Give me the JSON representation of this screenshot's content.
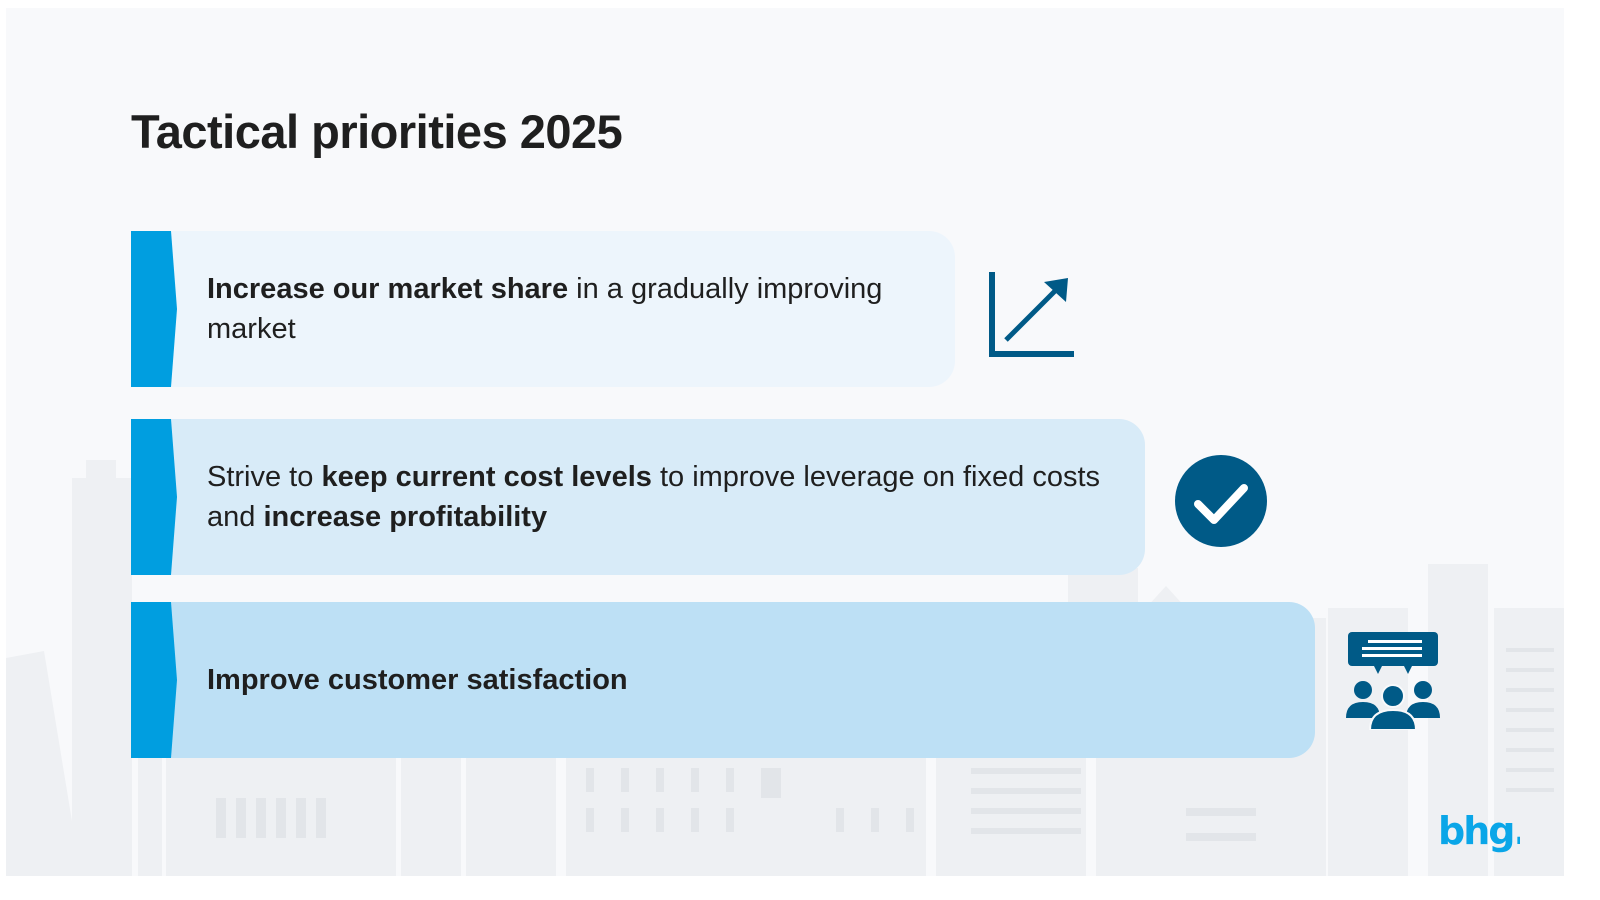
{
  "slide": {
    "title": "Tactical priorities 2025",
    "priorities": [
      {
        "parts": [
          {
            "text": "Increase our market share",
            "bold": true
          },
          {
            "text": " in a gradually improving market",
            "bold": false
          }
        ],
        "icon": "chart-up-arrow-icon"
      },
      {
        "parts": [
          {
            "text": "Strive to ",
            "bold": false
          },
          {
            "text": "keep current cost levels",
            "bold": true
          },
          {
            "text": " to improve leverage on fixed costs and ",
            "bold": false
          },
          {
            "text": "increase profitability",
            "bold": true
          }
        ],
        "icon": "checkmark-circle-icon"
      },
      {
        "parts": [
          {
            "text": "Improve customer satisfaction",
            "bold": true
          }
        ],
        "icon": "customers-feedback-icon"
      }
    ],
    "logo_text": "bhg."
  },
  "colors": {
    "accent_blue": "#009ee0",
    "icon_navy": "#005a87",
    "band_1": "#edf5fc",
    "band_2": "#d8ebf8",
    "band_3": "#bde0f5",
    "title_text": "#1f1f1f",
    "logo_blue": "#0aa6e8"
  }
}
